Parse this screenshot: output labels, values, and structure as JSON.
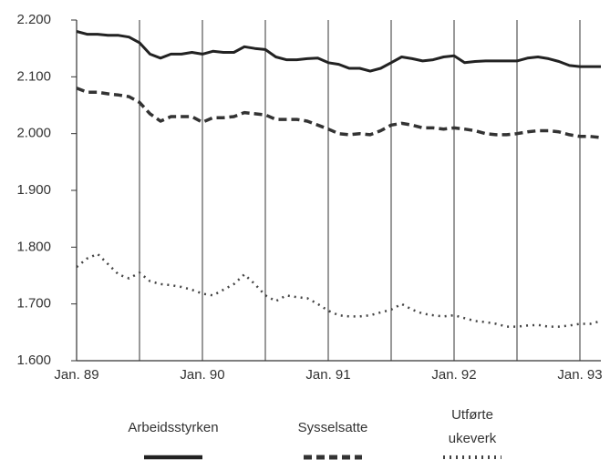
{
  "chart_data": {
    "type": "line",
    "categories": [
      "Jan. 89",
      null,
      null,
      null,
      null,
      null,
      null,
      null,
      null,
      null,
      null,
      null,
      "Jan. 90",
      null,
      null,
      null,
      null,
      null,
      null,
      null,
      null,
      null,
      null,
      null,
      "Jan. 91",
      null,
      null,
      null,
      null,
      null,
      null,
      null,
      null,
      null,
      null,
      null,
      "Jan. 92",
      null,
      null,
      null,
      null,
      null,
      null,
      null,
      null,
      null,
      null,
      null,
      "Jan. 93",
      null,
      null
    ],
    "series": [
      {
        "name": "Arbeidsstyrken",
        "color": "#222222",
        "style": "solid",
        "values": [
          2180,
          2175,
          2175,
          2173,
          2173,
          2170,
          2160,
          2140,
          2133,
          2140,
          2140,
          2143,
          2140,
          2145,
          2143,
          2143,
          2153,
          2150,
          2148,
          2135,
          2130,
          2130,
          2132,
          2133,
          2125,
          2122,
          2115,
          2115,
          2110,
          2115,
          2125,
          2135,
          2132,
          2128,
          2130,
          2135,
          2137,
          2125,
          2127,
          2128,
          2128,
          2128,
          2128,
          2133,
          2135,
          2132,
          2127,
          2120,
          2118,
          2118,
          2118
        ]
      },
      {
        "name": "Sysselsatte",
        "color": "#333333",
        "style": "dashed",
        "values": [
          2080,
          2073,
          2073,
          2070,
          2068,
          2065,
          2055,
          2035,
          2022,
          2030,
          2030,
          2030,
          2020,
          2028,
          2028,
          2030,
          2037,
          2035,
          2033,
          2025,
          2025,
          2025,
          2022,
          2015,
          2008,
          2000,
          1998,
          2000,
          1998,
          2005,
          2015,
          2018,
          2015,
          2010,
          2010,
          2008,
          2010,
          2008,
          2005,
          2000,
          1998,
          1998,
          2000,
          2003,
          2005,
          2005,
          2003,
          1998,
          1995,
          1995,
          1993
        ]
      },
      {
        "name": "Utførte ukeverk",
        "color": "#444444",
        "style": "dotted",
        "values": [
          1765,
          1780,
          1788,
          1770,
          1752,
          1745,
          1755,
          1740,
          1735,
          1733,
          1730,
          1725,
          1718,
          1715,
          1725,
          1735,
          1752,
          1735,
          1715,
          1705,
          1715,
          1712,
          1710,
          1700,
          1688,
          1680,
          1678,
          1678,
          1680,
          1685,
          1690,
          1700,
          1690,
          1683,
          1680,
          1678,
          1680,
          1675,
          1670,
          1668,
          1665,
          1660,
          1660,
          1662,
          1663,
          1660,
          1660,
          1662,
          1665,
          1665,
          1670
        ]
      }
    ],
    "ylim": [
      1600,
      2200
    ],
    "yticks": [
      {
        "value": 1600,
        "label": "1.600"
      },
      {
        "value": 1700,
        "label": "1.700"
      },
      {
        "value": 1800,
        "label": "1.800"
      },
      {
        "value": 1900,
        "label": "1.900"
      },
      {
        "value": 2000,
        "label": "2.000"
      },
      {
        "value": 2100,
        "label": "2.100"
      },
      {
        "value": 2200,
        "label": "2.200"
      }
    ],
    "grid": "x",
    "legend": "bottom"
  }
}
